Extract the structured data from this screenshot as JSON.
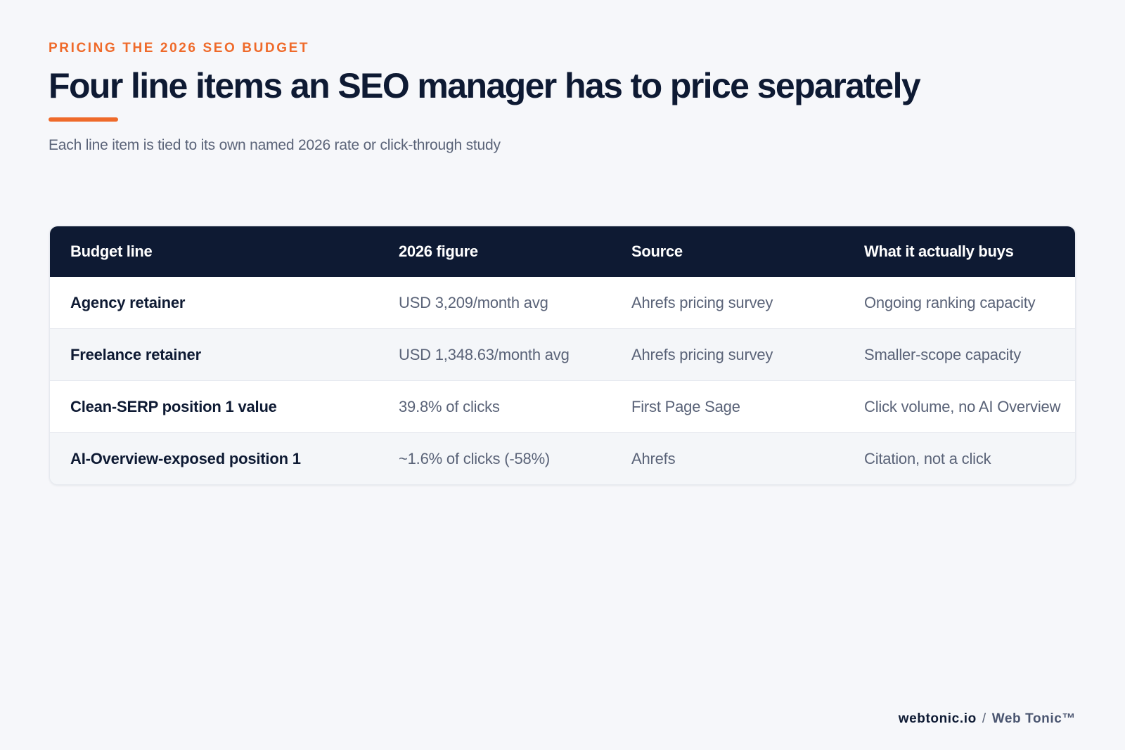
{
  "header": {
    "eyebrow": "PRICING THE 2026 SEO BUDGET",
    "title": "Four line items an SEO manager has to price separately",
    "subtitle": "Each line item is tied to its own named 2026 rate or click-through study"
  },
  "table": {
    "columns": [
      "Budget line",
      "2026 figure",
      "Source",
      "What it actually buys"
    ],
    "rows": [
      {
        "line": "Agency retainer",
        "figure": "USD 3,209/month avg",
        "source": "Ahrefs pricing survey",
        "buys": "Ongoing ranking capacity"
      },
      {
        "line": "Freelance retainer",
        "figure": "USD 1,348.63/month avg",
        "source": "Ahrefs pricing survey",
        "buys": "Smaller-scope capacity"
      },
      {
        "line": "Clean-SERP position 1 value",
        "figure": "39.8% of clicks",
        "source": "First Page Sage",
        "buys": "Click volume, no AI Overview"
      },
      {
        "line": "AI-Overview-exposed position 1",
        "figure": "~1.6% of clicks (-58%)",
        "source": "Ahrefs",
        "buys": "Citation, not a click"
      }
    ]
  },
  "footer": {
    "domain": "webtonic.io",
    "separator": "/",
    "brand": "Web Tonic™"
  },
  "colors": {
    "accent": "#ef6a2a",
    "navy": "#0e1a33",
    "background": "#f6f7fa"
  }
}
